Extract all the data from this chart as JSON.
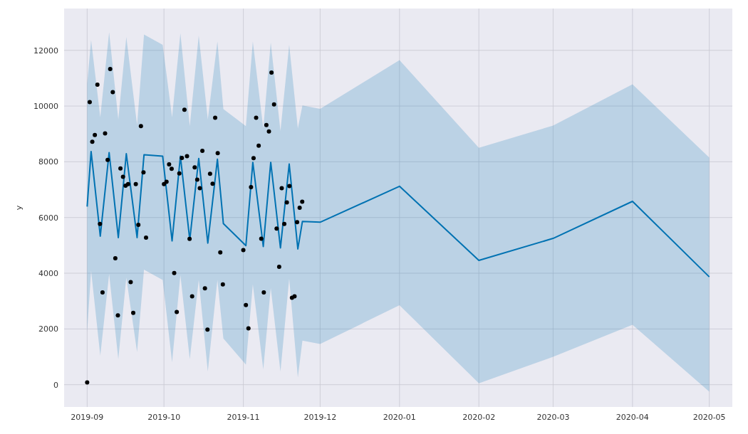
{
  "chart_data": {
    "type": "scatter",
    "ylabel": "y",
    "grid": true,
    "xlim": [
      "2019-08-23",
      "2020-05-10"
    ],
    "xticks": [
      {
        "value": "2019-09-01",
        "label": "2019-09"
      },
      {
        "value": "2019-10-01",
        "label": "2019-10"
      },
      {
        "value": "2019-11-01",
        "label": "2019-11"
      },
      {
        "value": "2019-12-01",
        "label": "2019-12"
      },
      {
        "value": "2020-01-01",
        "label": "2020-01"
      },
      {
        "value": "2020-02-01",
        "label": "2020-02"
      },
      {
        "value": "2020-03-01",
        "label": "2020-03"
      },
      {
        "value": "2020-04-01",
        "label": "2020-04"
      },
      {
        "value": "2020-05-01",
        "label": "2020-05"
      }
    ],
    "ylim": [
      -800,
      13500
    ],
    "yticks": [
      0,
      2000,
      4000,
      6000,
      8000,
      10000,
      12000
    ],
    "series": [
      {
        "type": "line",
        "color": "#0072b2",
        "x": [
          "2019-09-01T00:00",
          "2019-09-02T13:00",
          "2019-09-06T03:00",
          "2019-09-09T14:00",
          "2019-09-13T04:00",
          "2019-09-16T07:00",
          "2019-09-20T12:00",
          "2019-09-23T05:00",
          "2019-09-30T12:00",
          "2019-10-04T04:00",
          "2019-10-07T10:00",
          "2019-10-11T02:00",
          "2019-10-14T14:00",
          "2019-10-18T03:00",
          "2019-10-21T21:00",
          "2019-10-24T05:00",
          "2019-11-02T00:00",
          "2019-11-04T17:00",
          "2019-11-08T19:00",
          "2019-11-11T17:00",
          "2019-11-15T12:00",
          "2019-11-18T22:00",
          "2019-11-22T07:00",
          "2019-11-24T02:00",
          "2019-12-01T00:00",
          "2020-01-01T00:00",
          "2020-02-01T00:00",
          "2020-03-01T00:00",
          "2020-04-01T00:00",
          "2020-05-01T00:00"
        ],
        "values": [
          6390,
          8370,
          5330,
          8330,
          5280,
          8290,
          5280,
          8250,
          8200,
          5160,
          8200,
          5200,
          8120,
          5080,
          8090,
          5780,
          4990,
          7980,
          4960,
          7980,
          4910,
          7920,
          4870,
          5860,
          5830,
          7120,
          4460,
          5250,
          6580,
          3870
        ],
        "upper": [
          10800,
          12370,
          9600,
          12650,
          9520,
          12480,
          9320,
          12570,
          12200,
          9600,
          12610,
          9280,
          12530,
          9520,
          12320,
          9890,
          9280,
          12320,
          9200,
          12280,
          9110,
          12200,
          9200,
          10020,
          9900,
          11650,
          8500,
          9300,
          10780,
          8150
        ],
        "lower": [
          1900,
          4090,
          1040,
          3970,
          920,
          3840,
          1170,
          4130,
          3760,
          800,
          3930,
          920,
          3760,
          470,
          3760,
          1660,
          720,
          3600,
          550,
          3470,
          470,
          3800,
          260,
          1580,
          1460,
          2850,
          50,
          1000,
          2150,
          -250
        ]
      },
      {
        "color": "#000000",
        "marker": "circle",
        "x": [
          "2019-09-01",
          "2019-09-02",
          "2019-09-03",
          "2019-09-04",
          "2019-09-05",
          "2019-09-06",
          "2019-09-07",
          "2019-09-08",
          "2019-09-09",
          "2019-09-10",
          "2019-09-11",
          "2019-09-12",
          "2019-09-13",
          "2019-09-14",
          "2019-09-15",
          "2019-09-16",
          "2019-09-17",
          "2019-09-18",
          "2019-09-19",
          "2019-09-20",
          "2019-09-21",
          "2019-09-22",
          "2019-09-23",
          "2019-09-24",
          "2019-10-01",
          "2019-10-02",
          "2019-10-03",
          "2019-10-04",
          "2019-10-05",
          "2019-10-06",
          "2019-10-07",
          "2019-10-08",
          "2019-10-09",
          "2019-10-10",
          "2019-10-11",
          "2019-10-12",
          "2019-10-13",
          "2019-10-14",
          "2019-10-15",
          "2019-10-16",
          "2019-10-17",
          "2019-10-18",
          "2019-10-19",
          "2019-10-20",
          "2019-10-21",
          "2019-10-22",
          "2019-10-23",
          "2019-10-24",
          "2019-11-01",
          "2019-11-02",
          "2019-11-03",
          "2019-11-04",
          "2019-11-05",
          "2019-11-06",
          "2019-11-07",
          "2019-11-08",
          "2019-11-09",
          "2019-11-10",
          "2019-11-11",
          "2019-11-12",
          "2019-11-13",
          "2019-11-14",
          "2019-11-15",
          "2019-11-16",
          "2019-11-17",
          "2019-11-18",
          "2019-11-19",
          "2019-11-20",
          "2019-11-21",
          "2019-11-22",
          "2019-11-23",
          "2019-11-24"
        ],
        "values": [
          80,
          10140,
          8720,
          8960,
          10770,
          5770,
          3310,
          9020,
          8070,
          11330,
          10500,
          4540,
          2490,
          7760,
          7460,
          7140,
          7200,
          3680,
          2580,
          7200,
          5740,
          9280,
          7620,
          5280,
          7200,
          7280,
          7910,
          7750,
          4010,
          2610,
          7580,
          8140,
          9870,
          8200,
          5230,
          3170,
          7800,
          7360,
          7050,
          8390,
          3460,
          1980,
          7570,
          7210,
          9580,
          8310,
          4750,
          3600,
          4830,
          2860,
          2020,
          7090,
          8130,
          9580,
          8580,
          5240,
          3310,
          9320,
          9090,
          11200,
          10060,
          5600,
          4230,
          7050,
          5770,
          6540,
          7130,
          3120,
          3170,
          5830,
          6350,
          6570
        ]
      }
    ]
  }
}
